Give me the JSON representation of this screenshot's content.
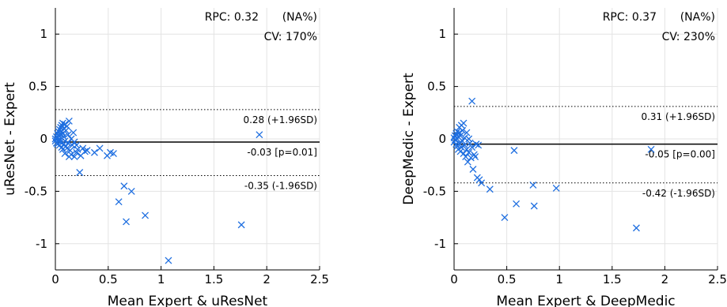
{
  "chart_data": [
    {
      "type": "scatter",
      "subtype": "bland-altman",
      "xlabel": "Mean Expert & uResNet",
      "ylabel": "uResNet - Expert",
      "xlim": [
        0,
        2.5
      ],
      "ylim": [
        -1.25,
        1.25
      ],
      "xticks": [
        0,
        0.5,
        1,
        1.5,
        2,
        2.5
      ],
      "xtick_labels": [
        "0",
        "0.5",
        "1",
        "1.5",
        "2",
        "2.5"
      ],
      "yticks": [
        -1,
        -0.5,
        0,
        0.5,
        1
      ],
      "ytick_labels": [
        "-1",
        "-0.5",
        "0",
        "0.5",
        "1"
      ],
      "grid": true,
      "marker": "x",
      "marker_color": "#1f6fe0",
      "stats": {
        "rpc": "RPC: 0.32",
        "rpc_pct": "(NA%)",
        "cv": "CV: 170%"
      },
      "lines": [
        {
          "kind": "upper-loa",
          "y": 0.28,
          "style": "dotted",
          "label": "0.28 (+1.96SD)"
        },
        {
          "kind": "mean",
          "y": -0.03,
          "style": "solid",
          "label": "-0.03 [p=0.01]"
        },
        {
          "kind": "lower-loa",
          "y": -0.35,
          "style": "dotted",
          "label": "-0.35 (-1.96SD)"
        }
      ],
      "points": [
        [
          0.0,
          0.0
        ],
        [
          0.0,
          -0.02
        ],
        [
          0.01,
          0.02
        ],
        [
          0.01,
          -0.04
        ],
        [
          0.02,
          0.01
        ],
        [
          0.02,
          0.05
        ],
        [
          0.02,
          -0.05
        ],
        [
          0.03,
          0.03
        ],
        [
          0.03,
          0.07
        ],
        [
          0.03,
          -0.02
        ],
        [
          0.04,
          0.09
        ],
        [
          0.04,
          0.0
        ],
        [
          0.04,
          -0.06
        ],
        [
          0.05,
          0.11
        ],
        [
          0.05,
          0.04
        ],
        [
          0.05,
          -0.03
        ],
        [
          0.06,
          0.13
        ],
        [
          0.06,
          0.07
        ],
        [
          0.06,
          -0.08
        ],
        [
          0.07,
          0.05
        ],
        [
          0.07,
          0.15
        ],
        [
          0.07,
          -0.1
        ],
        [
          0.08,
          0.02
        ],
        [
          0.08,
          0.1
        ],
        [
          0.08,
          -0.05
        ],
        [
          0.09,
          0.14
        ],
        [
          0.09,
          -0.02
        ],
        [
          0.09,
          -0.14
        ],
        [
          0.1,
          0.08
        ],
        [
          0.1,
          -0.07
        ],
        [
          0.11,
          0.12
        ],
        [
          0.11,
          -0.09
        ],
        [
          0.12,
          0.04
        ],
        [
          0.12,
          -0.04
        ],
        [
          0.13,
          0.17
        ],
        [
          0.13,
          -0.17
        ],
        [
          0.14,
          -0.11
        ],
        [
          0.15,
          0.0
        ],
        [
          0.15,
          -0.15
        ],
        [
          0.16,
          -0.06
        ],
        [
          0.17,
          0.06
        ],
        [
          0.18,
          -0.03
        ],
        [
          0.18,
          -0.17
        ],
        [
          0.2,
          -0.06
        ],
        [
          0.2,
          -0.13
        ],
        [
          0.21,
          -0.1
        ],
        [
          0.23,
          -0.32
        ],
        [
          0.24,
          -0.16
        ],
        [
          0.26,
          -0.09
        ],
        [
          0.28,
          -0.12
        ],
        [
          0.3,
          -0.11
        ],
        [
          0.37,
          -0.13
        ],
        [
          0.42,
          -0.09
        ],
        [
          0.49,
          -0.16
        ],
        [
          0.52,
          -0.13
        ],
        [
          0.55,
          -0.14
        ],
        [
          0.6,
          -0.6
        ],
        [
          0.65,
          -0.45
        ],
        [
          0.67,
          -0.79
        ],
        [
          0.72,
          -0.5
        ],
        [
          0.85,
          -0.73
        ],
        [
          1.07,
          -1.16
        ],
        [
          1.76,
          -0.82
        ],
        [
          1.93,
          0.04
        ]
      ]
    },
    {
      "type": "scatter",
      "subtype": "bland-altman",
      "xlabel": "Mean Expert & DeepMedic",
      "ylabel": "DeepMedic - Expert",
      "xlim": [
        0,
        2.5
      ],
      "ylim": [
        -1.25,
        1.25
      ],
      "xticks": [
        0,
        0.5,
        1,
        1.5,
        2,
        2.5
      ],
      "xtick_labels": [
        "0",
        "0.5",
        "1",
        "1.5",
        "2",
        "2.5"
      ],
      "yticks": [
        -1,
        -0.5,
        0,
        0.5,
        1
      ],
      "ytick_labels": [
        "-1",
        "-0.5",
        "0",
        "0.5",
        "1"
      ],
      "grid": true,
      "marker": "x",
      "marker_color": "#1f6fe0",
      "stats": {
        "rpc": "RPC: 0.37",
        "rpc_pct": "(NA%)",
        "cv": "CV: 230%"
      },
      "lines": [
        {
          "kind": "upper-loa",
          "y": 0.31,
          "style": "dotted",
          "label": "0.31 (+1.96SD)"
        },
        {
          "kind": "mean",
          "y": -0.05,
          "style": "solid",
          "label": "-0.05 [p=0.00]"
        },
        {
          "kind": "lower-loa",
          "y": -0.42,
          "style": "dotted",
          "label": "-0.42 (-1.96SD)"
        }
      ],
      "points": [
        [
          0.0,
          0.01
        ],
        [
          0.0,
          -0.03
        ],
        [
          0.01,
          0.03
        ],
        [
          0.01,
          -0.01
        ],
        [
          0.02,
          0.05
        ],
        [
          0.02,
          -0.05
        ],
        [
          0.03,
          0.0
        ],
        [
          0.03,
          0.07
        ],
        [
          0.03,
          -0.07
        ],
        [
          0.04,
          0.02
        ],
        [
          0.04,
          -0.1
        ],
        [
          0.05,
          0.06
        ],
        [
          0.05,
          -0.04
        ],
        [
          0.05,
          0.11
        ],
        [
          0.06,
          -0.12
        ],
        [
          0.06,
          0.03
        ],
        [
          0.07,
          0.13
        ],
        [
          0.07,
          -0.08
        ],
        [
          0.08,
          0.08
        ],
        [
          0.08,
          -0.02
        ],
        [
          0.09,
          0.15
        ],
        [
          0.09,
          -0.14
        ],
        [
          0.1,
          0.01
        ],
        [
          0.1,
          -0.06
        ],
        [
          0.11,
          -0.17
        ],
        [
          0.12,
          0.06
        ],
        [
          0.12,
          -0.1
        ],
        [
          0.13,
          -0.22
        ],
        [
          0.14,
          0.0
        ],
        [
          0.14,
          -0.13
        ],
        [
          0.15,
          -0.04
        ],
        [
          0.16,
          -0.18
        ],
        [
          0.17,
          0.36
        ],
        [
          0.17,
          -0.08
        ],
        [
          0.18,
          -0.29
        ],
        [
          0.19,
          -0.15
        ],
        [
          0.2,
          -0.17
        ],
        [
          0.21,
          -0.05
        ],
        [
          0.22,
          -0.37
        ],
        [
          0.23,
          -0.06
        ],
        [
          0.24,
          -0.39
        ],
        [
          0.26,
          -0.42
        ],
        [
          0.34,
          -0.48
        ],
        [
          0.48,
          -0.75
        ],
        [
          0.57,
          -0.11
        ],
        [
          0.59,
          -0.62
        ],
        [
          0.75,
          -0.44
        ],
        [
          0.76,
          -0.64
        ],
        [
          0.97,
          -0.47
        ],
        [
          1.73,
          -0.85
        ],
        [
          1.87,
          -0.1
        ]
      ]
    }
  ]
}
